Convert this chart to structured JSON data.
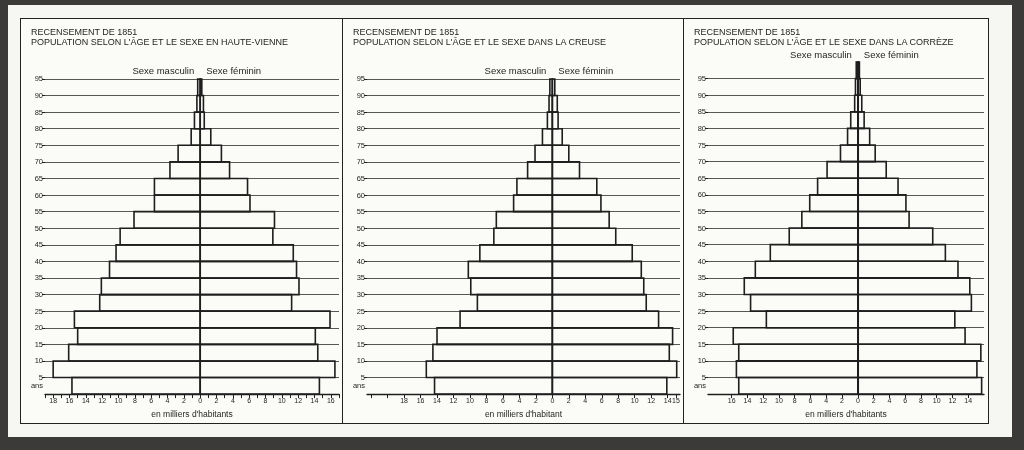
{
  "chart_data": [
    {
      "type": "bar",
      "orientation": "horizontal",
      "stacked": true,
      "title": "RECENSEMENT DE 1851",
      "subtitle": "POPULATION SELON L'ÂGE ET LE SEXE EN HAUTE-VIENNE",
      "xlabel": "en milliers d'habitants",
      "ylabel": "ans",
      "x": [
        2.5,
        7.5,
        12.5,
        17.5,
        22.5,
        27.5,
        32.5,
        37.5,
        42.5,
        47.5,
        52.5,
        57.5,
        62.5,
        67.5,
        72.5,
        77.5,
        82.5,
        87.5,
        92.5
      ],
      "series": [
        {
          "name": "Sexe masculin",
          "color": "#1e1e1e",
          "values": [
            -15.7,
            -18.0,
            -16.1,
            -15.0,
            -15.4,
            -12.3,
            -12.1,
            -11.1,
            -10.3,
            -9.8,
            -8.1,
            -5.6,
            -5.6,
            -3.7,
            -2.7,
            -1.1,
            -0.7,
            -0.4,
            -0.3
          ]
        },
        {
          "name": "Sexe féminin",
          "color": "#1e1e1e",
          "values": [
            14.6,
            16.5,
            14.4,
            14.1,
            15.9,
            11.2,
            12.1,
            11.8,
            11.4,
            8.9,
            9.1,
            6.1,
            5.8,
            3.6,
            2.6,
            1.3,
            0.5,
            0.4,
            0.2
          ]
        }
      ],
      "xlim": [
        -19,
        17
      ],
      "xticks": [
        {
          "value": -19,
          "label": null
        },
        {
          "value": -18,
          "label": "18"
        },
        {
          "value": -17,
          "label": null
        },
        {
          "value": -16,
          "label": "16"
        },
        {
          "value": -15,
          "label": null
        },
        {
          "value": -14,
          "label": "14"
        },
        {
          "value": -13,
          "label": null
        },
        {
          "value": -12,
          "label": "12"
        },
        {
          "value": -11,
          "label": null
        },
        {
          "value": -10,
          "label": "10"
        },
        {
          "value": -9,
          "label": null
        },
        {
          "value": -8,
          "label": "8"
        },
        {
          "value": -7,
          "label": null
        },
        {
          "value": -6,
          "label": "6"
        },
        {
          "value": -5,
          "label": null
        },
        {
          "value": -4,
          "label": "4"
        },
        {
          "value": -3,
          "label": null
        },
        {
          "value": -2,
          "label": "2"
        },
        {
          "value": -1,
          "label": null
        },
        0,
        {
          "value": 1,
          "label": null
        },
        2,
        {
          "value": 3,
          "label": null
        },
        4,
        {
          "value": 5,
          "label": null
        },
        6,
        {
          "value": 7,
          "label": null
        },
        8,
        {
          "value": 9,
          "label": null
        },
        10,
        {
          "value": 11,
          "label": null
        },
        12,
        {
          "value": 13,
          "label": null
        },
        14,
        {
          "value": 15,
          "label": null
        },
        16,
        {
          "value": 17,
          "label": null
        }
      ],
      "ylim": [
        0,
        95
      ],
      "yticks": [
        5,
        10,
        15,
        20,
        25,
        30,
        35,
        40,
        45,
        50,
        55,
        60,
        65,
        70,
        75,
        80,
        85,
        90,
        95
      ],
      "grid": "y"
    },
    {
      "type": "bar",
      "orientation": "horizontal",
      "stacked": true,
      "title": "RECENSEMENT DE 1851",
      "subtitle": "POPULATION SELON L'ÂGE ET LE SEXE DANS LA CREUSE",
      "xlabel": "en milliers d'habitant",
      "ylabel": "ans",
      "x": [
        2.5,
        7.5,
        12.5,
        17.5,
        22.5,
        27.5,
        32.5,
        37.5,
        42.5,
        47.5,
        52.5,
        57.5,
        62.5,
        67.5,
        72.5,
        77.5,
        82.5,
        87.5,
        92.5
      ],
      "series": [
        {
          "name": "Sexe masculin",
          "color": "#1e1e1e",
          "values": [
            -14.3,
            -15.3,
            -14.5,
            -14.0,
            -11.2,
            -9.1,
            -9.9,
            -10.2,
            -8.8,
            -7.1,
            -6.8,
            -4.7,
            -4.3,
            -3.0,
            -2.1,
            -1.2,
            -0.6,
            -0.4,
            -0.3
          ]
        },
        {
          "name": "Sexe féminin",
          "color": "#1e1e1e",
          "values": [
            13.9,
            15.1,
            14.2,
            14.6,
            12.9,
            11.4,
            11.1,
            10.8,
            9.7,
            7.7,
            6.9,
            5.9,
            5.4,
            3.3,
            2.0,
            1.2,
            0.7,
            0.6,
            0.3
          ]
        }
      ],
      "xlim": [
        -22.5,
        15.5
      ],
      "xticks": [
        {
          "value": -22,
          "label": null
        },
        {
          "value": -20,
          "label": null
        },
        {
          "value": -18,
          "label": "18"
        },
        {
          "value": -16,
          "label": "16"
        },
        {
          "value": -14,
          "label": "14"
        },
        {
          "value": -12,
          "label": "12"
        },
        {
          "value": -10,
          "label": "10"
        },
        {
          "value": -8,
          "label": "8"
        },
        {
          "value": -6,
          "label": "6"
        },
        {
          "value": -4,
          "label": "4"
        },
        {
          "value": -2,
          "label": "2"
        },
        0,
        2,
        4,
        6,
        8,
        10,
        12,
        14,
        15
      ],
      "ylim": [
        0,
        95
      ],
      "yticks": [
        5,
        10,
        15,
        20,
        25,
        30,
        35,
        40,
        45,
        50,
        55,
        60,
        65,
        70,
        75,
        80,
        85,
        90,
        95
      ],
      "grid": "y"
    },
    {
      "type": "bar",
      "orientation": "horizontal",
      "stacked": true,
      "title": "RECENSEMENT DE 1851",
      "subtitle": "POPULATION SELON L'ÂGE ET LE SEXE DANS LA CORRÈZE",
      "xlabel": "en milliers d'habitants",
      "ylabel": "ans",
      "x": [
        2.5,
        7.5,
        12.5,
        17.5,
        22.5,
        27.5,
        32.5,
        37.5,
        42.5,
        47.5,
        52.5,
        57.5,
        62.5,
        67.5,
        72.5,
        77.5,
        82.5,
        87.5,
        92.5,
        97.5
      ],
      "series": [
        {
          "name": "Sexe masculin",
          "color": "#1e1e1e",
          "values": [
            -15.1,
            -15.4,
            -15.1,
            -15.8,
            -11.6,
            -13.6,
            -14.4,
            -13.0,
            -11.1,
            -8.7,
            -7.1,
            -6.1,
            -5.1,
            -3.9,
            -2.2,
            -1.3,
            -0.9,
            -0.4,
            -0.3,
            -0.2
          ]
        },
        {
          "name": "Sexe féminin",
          "color": "#1e1e1e",
          "values": [
            15.7,
            15.1,
            15.6,
            13.6,
            12.3,
            14.4,
            14.2,
            12.7,
            11.1,
            9.5,
            6.5,
            6.1,
            5.1,
            3.6,
            2.2,
            1.5,
            0.8,
            0.5,
            0.3,
            0.2
          ]
        }
      ],
      "xlim": [
        -19,
        16
      ],
      "xticks": [
        {
          "value": -16,
          "label": "16"
        },
        {
          "value": -14,
          "label": "14"
        },
        {
          "value": -12,
          "label": "12"
        },
        {
          "value": -10,
          "label": "10"
        },
        {
          "value": -8,
          "label": "8"
        },
        {
          "value": -6,
          "label": "6"
        },
        {
          "value": -4,
          "label": "4"
        },
        {
          "value": -2,
          "label": "2"
        },
        0,
        2,
        4,
        6,
        8,
        10,
        12,
        14
      ],
      "ylim": [
        0,
        100
      ],
      "yticks": [
        5,
        10,
        15,
        20,
        25,
        30,
        35,
        40,
        45,
        50,
        55,
        60,
        65,
        70,
        75,
        80,
        85,
        90,
        95
      ],
      "grid": "y"
    }
  ]
}
